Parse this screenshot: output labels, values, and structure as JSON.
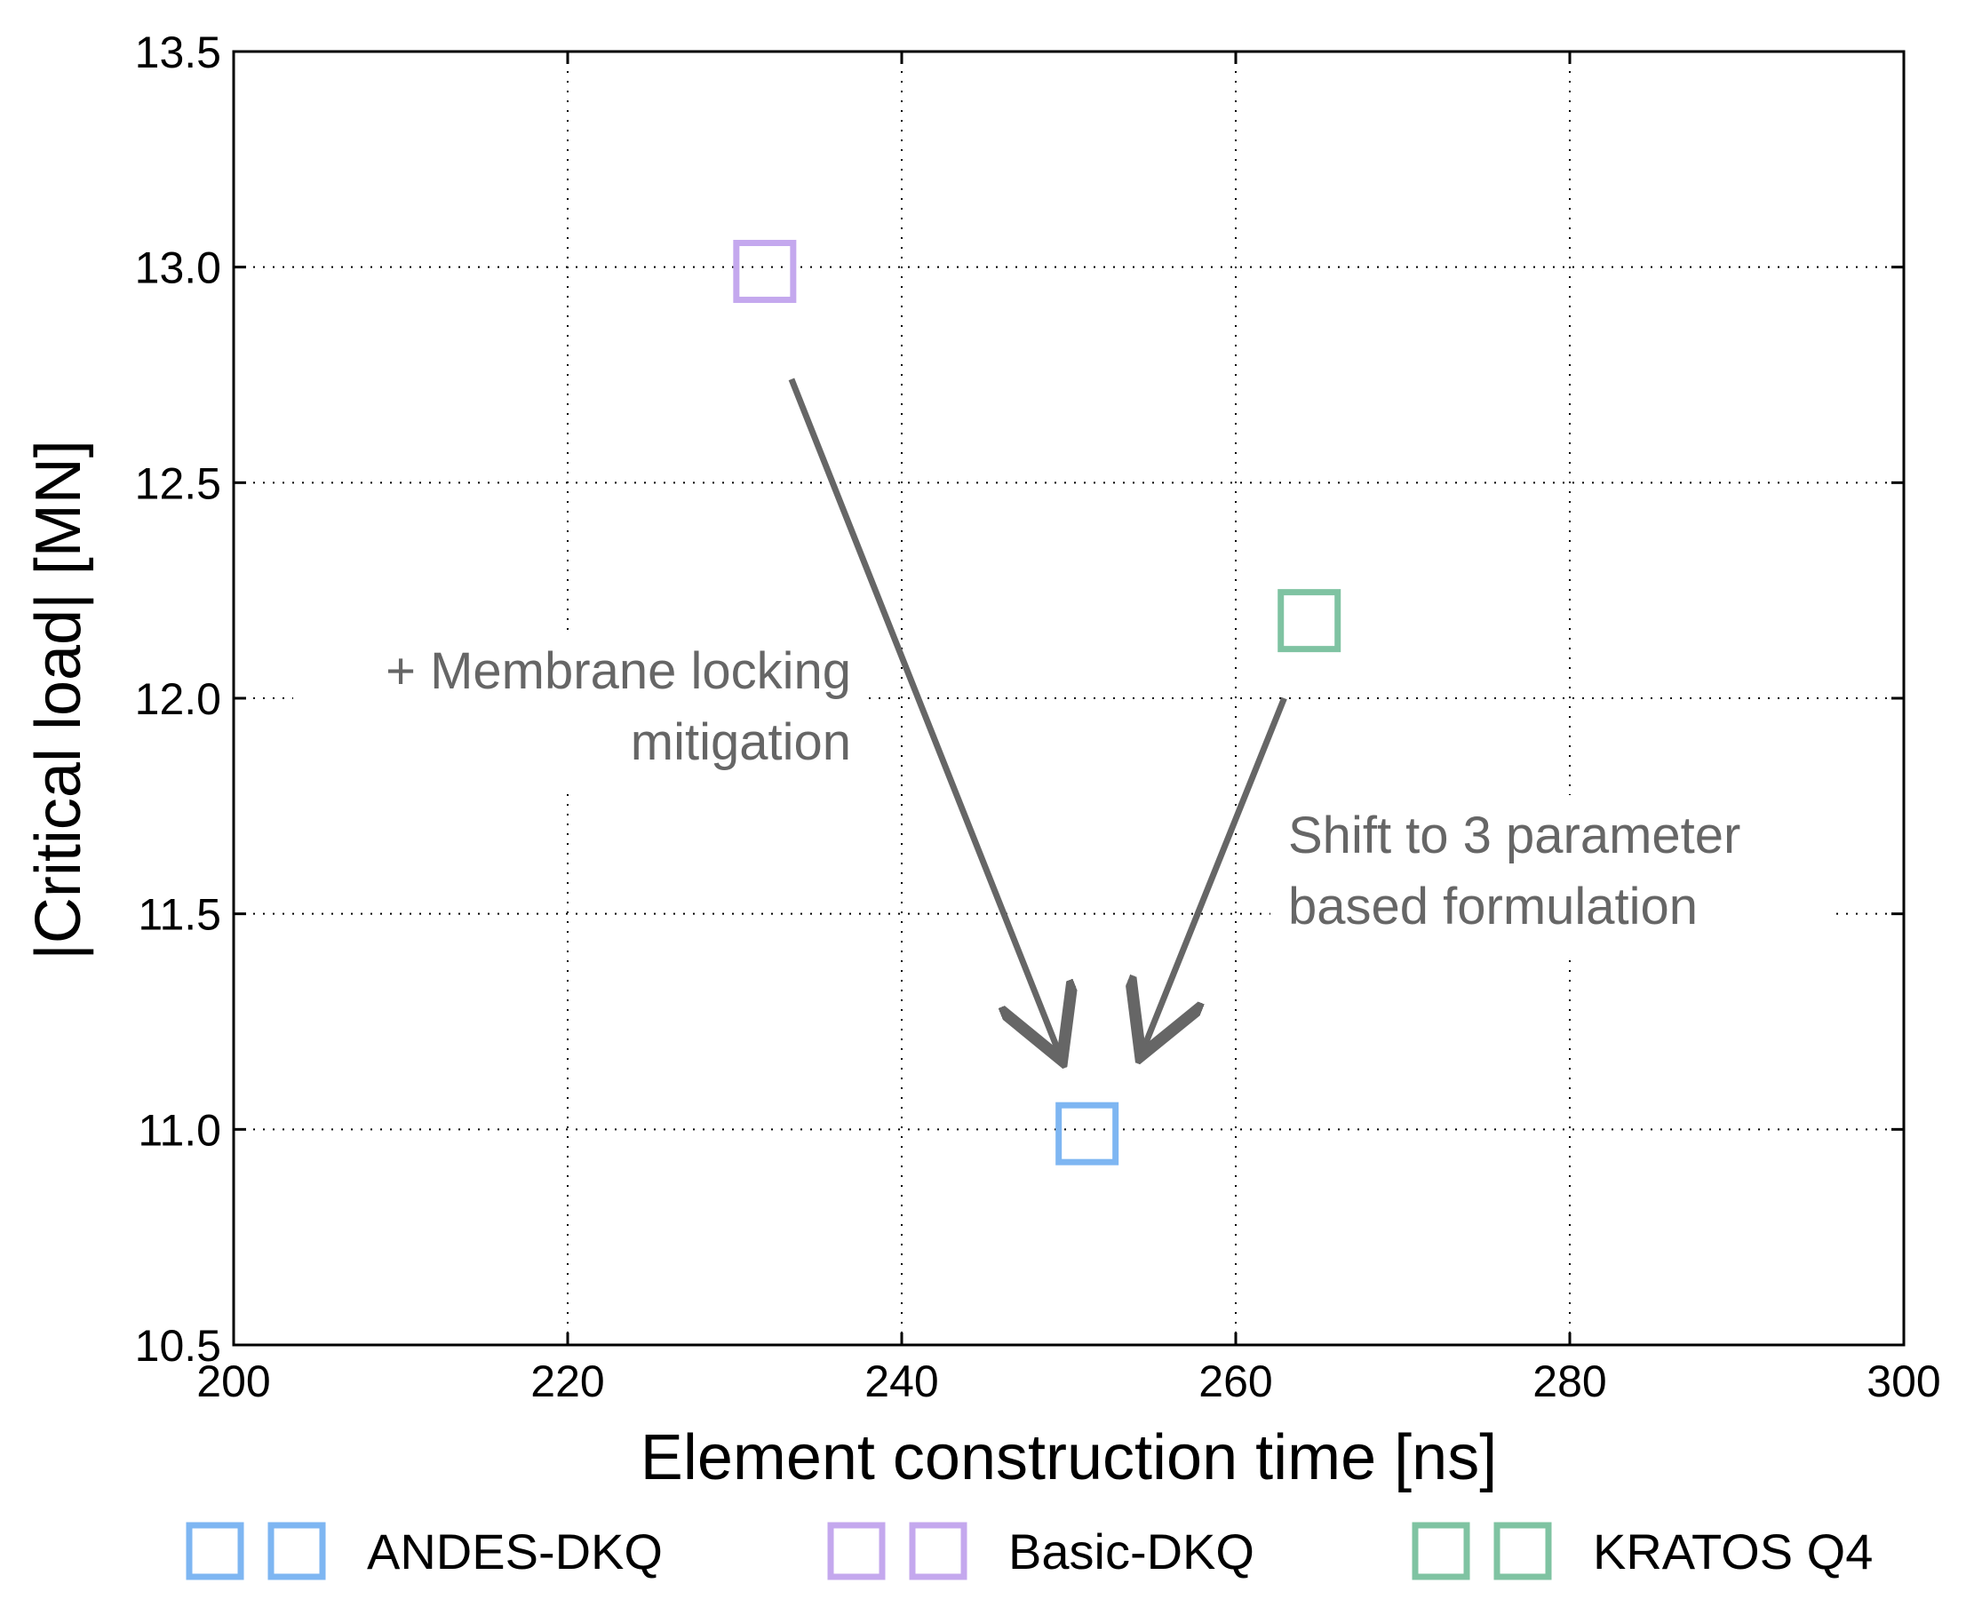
{
  "chart_data": {
    "type": "scatter",
    "title": "",
    "xlabel": "Element construction time [ns]",
    "ylabel": "|Critical load| [MN]",
    "xlim": [
      200,
      300
    ],
    "ylim": [
      10.5,
      13.5
    ],
    "xticks": [
      200,
      220,
      240,
      260,
      280,
      300
    ],
    "yticks": [
      10.5,
      11.0,
      11.5,
      12.0,
      12.5,
      13.0,
      13.5
    ],
    "xtick_labels": [
      "200",
      "220",
      "240",
      "260",
      "280",
      "300"
    ],
    "ytick_labels": [
      "10.5",
      "11.0",
      "11.5",
      "12.0",
      "12.5",
      "13.0",
      "13.5"
    ],
    "grid": true,
    "legend_position": "bottom",
    "marker": "open-square",
    "series": [
      {
        "name": "ANDES-DKQ",
        "color": "#7eb6f2",
        "x": [
          251.1
        ],
        "y": [
          10.99
        ]
      },
      {
        "name": "Basic-DKQ",
        "color": "#c4a8ee",
        "x": [
          231.8
        ],
        "y": [
          12.99
        ]
      },
      {
        "name": "KRATOS Q4",
        "color": "#7fc3a2",
        "x": [
          264.4
        ],
        "y": [
          12.18
        ]
      }
    ],
    "annotations": [
      {
        "lines": [
          "+ Membrane locking",
          "mitigation"
        ],
        "arrow_from": [
          233.4,
          12.74
        ],
        "arrow_to": [
          249.6,
          11.16
        ]
      },
      {
        "lines": [
          "Shift to 3 parameter",
          "based formulation"
        ],
        "arrow_from": [
          262.9,
          12.0
        ],
        "arrow_to": [
          254.3,
          11.17
        ]
      }
    ]
  }
}
